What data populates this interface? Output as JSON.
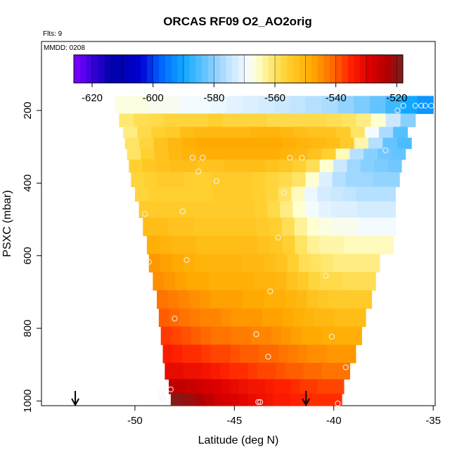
{
  "header": {
    "title": "ORCAS RF09 O2_AO2orig",
    "flights": "Flts: 9",
    "mmdd": "MMDD: 0208"
  },
  "chart_data": {
    "type": "heatmap",
    "title": "ORCAS RF09 O2_AO2orig",
    "xlabel": "Latitude (deg N)",
    "ylabel": "PSXC (mbar)",
    "xlim": [
      -54.7,
      -34.9
    ],
    "ylim": [
      1013,
      10
    ],
    "xticks": [
      -50,
      -45,
      -40,
      -35
    ],
    "yticks": [
      200,
      400,
      600,
      800,
      1000
    ],
    "grid": false,
    "colorbar": {
      "placement": "top",
      "range": [
        -626,
        -518
      ],
      "ticks": [
        -620,
        -600,
        -580,
        -560,
        -540,
        -520
      ],
      "stops": [
        {
          "v": -626,
          "c": "#8000ff"
        },
        {
          "v": -620,
          "c": "#3a00e0"
        },
        {
          "v": -614,
          "c": "#0000a8"
        },
        {
          "v": -604,
          "c": "#0000d0"
        },
        {
          "v": -598,
          "c": "#0060ff"
        },
        {
          "v": -590,
          "c": "#10a8ff"
        },
        {
          "v": -582,
          "c": "#70c8ff"
        },
        {
          "v": -574,
          "c": "#cce8ff"
        },
        {
          "v": -569,
          "c": "#f4fbff"
        },
        {
          "v": -566,
          "c": "#ffffd0"
        },
        {
          "v": -561,
          "c": "#ffe870"
        },
        {
          "v": -556,
          "c": "#ffd030"
        },
        {
          "v": -548,
          "c": "#ffaa00"
        },
        {
          "v": -541,
          "c": "#ff6a00"
        },
        {
          "v": -535,
          "c": "#ff2000"
        },
        {
          "v": -529,
          "c": "#dd0000"
        },
        {
          "v": -523,
          "c": "#b00000"
        },
        {
          "v": -518,
          "c": "#7a2020"
        }
      ]
    },
    "levels": [
      {
        "p": 187,
        "lat_min": -51.0,
        "lat_max": -35.0,
        "values": [
          -567,
          -567,
          -568,
          -568,
          -569,
          -569,
          -570,
          -571,
          -572,
          -573,
          -574,
          -575,
          -576,
          -577,
          -579,
          -581,
          -583,
          -586,
          -590,
          -592
        ]
      },
      {
        "p": 230,
        "lat_min": -50.8,
        "lat_max": -35.9,
        "values": [
          -561,
          -559,
          -558,
          -557,
          -557,
          -557,
          -556,
          -557,
          -557,
          -557,
          -558,
          -558,
          -558,
          -558,
          -559,
          -560,
          -562,
          -566,
          -574,
          -580
        ]
      },
      {
        "p": 260,
        "lat_min": -50.6,
        "lat_max": -36.3,
        "values": [
          -562,
          -558,
          -556,
          -555,
          -552,
          -551,
          -551,
          -551,
          -551,
          -550,
          -550,
          -551,
          -552,
          -553,
          -553,
          -555,
          -560,
          -569,
          -577,
          -584
        ]
      },
      {
        "p": 290,
        "lat_min": -50.5,
        "lat_max": -36.1,
        "values": [
          -560,
          -557,
          -553,
          -551,
          -549,
          -548,
          -548,
          -548,
          -548,
          -548,
          -548,
          -549,
          -550,
          -551,
          -552,
          -555,
          -564,
          -576,
          -583,
          -585
        ]
      },
      {
        "p": 320,
        "lat_min": -50.4,
        "lat_max": -36.4,
        "values": [
          -560,
          -556,
          -553,
          -551,
          -550,
          -549,
          -549,
          -549,
          -549,
          -549,
          -549,
          -550,
          -551,
          -553,
          -556,
          -565,
          -576,
          -580,
          -582,
          -583
        ]
      },
      {
        "p": 350,
        "lat_min": -50.3,
        "lat_max": -36.6,
        "values": [
          -556,
          -554,
          -553,
          -552,
          -552,
          -553,
          -553,
          -552,
          -552,
          -552,
          -553,
          -554,
          -556,
          -559,
          -566,
          -574,
          -578,
          -580,
          -581,
          -582
        ]
      },
      {
        "p": 390,
        "lat_min": -50.2,
        "lat_max": -36.7,
        "values": [
          -557,
          -556,
          -555,
          -555,
          -556,
          -556,
          -555,
          -555,
          -555,
          -556,
          -557,
          -558,
          -560,
          -566,
          -572,
          -576,
          -578,
          -578,
          -579,
          -579
        ]
      },
      {
        "p": 430,
        "lat_min": -50.0,
        "lat_max": -36.9,
        "values": [
          -557,
          -556,
          -556,
          -556,
          -556,
          -556,
          -555,
          -555,
          -555,
          -556,
          -557,
          -560,
          -565,
          -570,
          -573,
          -574,
          -575,
          -576,
          -576,
          -576
        ]
      },
      {
        "p": 470,
        "lat_min": -49.8,
        "lat_max": -36.9,
        "values": [
          -555,
          -555,
          -555,
          -555,
          -555,
          -555,
          -555,
          -555,
          -555,
          -556,
          -558,
          -562,
          -566,
          -569,
          -571,
          -572,
          -572,
          -573,
          -573,
          -573
        ]
      },
      {
        "p": 520,
        "lat_min": -49.6,
        "lat_max": -36.9,
        "values": [
          -552,
          -552,
          -553,
          -553,
          -554,
          -554,
          -554,
          -554,
          -554,
          -555,
          -556,
          -559,
          -563,
          -566,
          -567,
          -568,
          -568,
          -569,
          -569,
          -569
        ]
      },
      {
        "p": 570,
        "lat_min": -49.4,
        "lat_max": -37.0,
        "values": [
          -549,
          -550,
          -551,
          -551,
          -552,
          -552,
          -552,
          -552,
          -552,
          -553,
          -554,
          -556,
          -560,
          -563,
          -564,
          -564,
          -565,
          -565,
          -565,
          -565
        ]
      },
      {
        "p": 620,
        "lat_min": -49.3,
        "lat_max": -37.7,
        "values": [
          -546,
          -547,
          -548,
          -549,
          -550,
          -550,
          -550,
          -550,
          -551,
          -551,
          -552,
          -553,
          -556,
          -559,
          -560,
          -561,
          -562,
          -562,
          -562,
          -562
        ]
      },
      {
        "p": 670,
        "lat_min": -49.1,
        "lat_max": -37.9,
        "values": [
          -545,
          -546,
          -547,
          -548,
          -548,
          -549,
          -549,
          -549,
          -549,
          -550,
          -550,
          -551,
          -553,
          -555,
          -557,
          -558,
          -558,
          -559,
          -559,
          -559
        ]
      },
      {
        "p": 720,
        "lat_min": -48.9,
        "lat_max": -38.1,
        "values": [
          -542,
          -543,
          -544,
          -545,
          -546,
          -547,
          -547,
          -547,
          -548,
          -548,
          -549,
          -549,
          -550,
          -551,
          -553,
          -554,
          -555,
          -555,
          -555,
          -555
        ]
      },
      {
        "p": 770,
        "lat_min": -48.8,
        "lat_max": -38.4,
        "values": [
          -540,
          -541,
          -542,
          -543,
          -544,
          -544,
          -545,
          -546,
          -546,
          -546,
          -547,
          -547,
          -548,
          -549,
          -550,
          -551,
          -551,
          -552,
          -552,
          -552
        ]
      },
      {
        "p": 820,
        "lat_min": -48.7,
        "lat_max": -38.6,
        "values": [
          -537,
          -538,
          -539,
          -540,
          -541,
          -542,
          -542,
          -543,
          -543,
          -544,
          -544,
          -545,
          -546,
          -547,
          -548,
          -548,
          -549,
          -549,
          -549,
          -549
        ]
      },
      {
        "p": 870,
        "lat_min": -48.6,
        "lat_max": -38.9,
        "values": [
          -534,
          -535,
          -536,
          -536,
          -537,
          -538,
          -538,
          -539,
          -540,
          -540,
          -541,
          -541,
          -542,
          -543,
          -544,
          -545,
          -545,
          -546,
          -546,
          -546
        ]
      },
      {
        "p": 920,
        "lat_min": -48.5,
        "lat_max": -39.2,
        "values": [
          -531,
          -531,
          -532,
          -532,
          -533,
          -534,
          -535,
          -536,
          -536,
          -537,
          -538,
          -538,
          -539,
          -540,
          -540,
          -541,
          -541,
          -542,
          -542,
          -542
        ]
      },
      {
        "p": 960,
        "lat_min": -48.3,
        "lat_max": -39.5,
        "values": [
          -525,
          -525,
          -526,
          -527,
          -528,
          -529,
          -530,
          -531,
          -532,
          -533,
          -533,
          -534,
          -535,
          -535,
          -536,
          -537,
          -537,
          -538,
          -538,
          -538
        ]
      },
      {
        "p": 1000,
        "lat_min": -48.2,
        "lat_max": -39.6,
        "values": [
          -519,
          -520,
          -521,
          -523,
          -525,
          -527,
          -528,
          -529,
          -530,
          -531,
          -532,
          -533,
          -534,
          -534,
          -535,
          -535,
          -536,
          -536,
          -536,
          -536
        ]
      }
    ],
    "observations": [
      {
        "lat": -36.8,
        "p": 200
      },
      {
        "lat": -36.5,
        "p": 187
      },
      {
        "lat": -35.9,
        "p": 187
      },
      {
        "lat": -35.6,
        "p": 187
      },
      {
        "lat": -35.4,
        "p": 187
      },
      {
        "lat": -35.1,
        "p": 187
      },
      {
        "lat": -37.4,
        "p": 310
      },
      {
        "lat": -47.1,
        "p": 330
      },
      {
        "lat": -46.6,
        "p": 330
      },
      {
        "lat": -42.2,
        "p": 330
      },
      {
        "lat": -41.6,
        "p": 330
      },
      {
        "lat": -46.8,
        "p": 368
      },
      {
        "lat": -45.9,
        "p": 395
      },
      {
        "lat": -41.1,
        "p": 397
      },
      {
        "lat": -42.5,
        "p": 427
      },
      {
        "lat": -47.6,
        "p": 478
      },
      {
        "lat": -49.5,
        "p": 485
      },
      {
        "lat": -40.8,
        "p": 512
      },
      {
        "lat": -42.8,
        "p": 550
      },
      {
        "lat": -49.3,
        "p": 617
      },
      {
        "lat": -47.4,
        "p": 612
      },
      {
        "lat": -40.4,
        "p": 655
      },
      {
        "lat": -43.2,
        "p": 698
      },
      {
        "lat": -48.0,
        "p": 773
      },
      {
        "lat": -49.0,
        "p": 777
      },
      {
        "lat": -43.9,
        "p": 816
      },
      {
        "lat": -40.1,
        "p": 823
      },
      {
        "lat": -43.3,
        "p": 878
      },
      {
        "lat": -39.4,
        "p": 907
      },
      {
        "lat": -48.2,
        "p": 968
      },
      {
        "lat": -48.7,
        "p": 975
      },
      {
        "lat": -48.7,
        "p": 988
      },
      {
        "lat": -48.6,
        "p": 995
      },
      {
        "lat": -43.8,
        "p": 1003
      },
      {
        "lat": -43.7,
        "p": 1003
      },
      {
        "lat": -39.8,
        "p": 1007
      }
    ],
    "arrows": [
      {
        "lat": -53.0
      },
      {
        "lat": -41.4
      }
    ]
  }
}
